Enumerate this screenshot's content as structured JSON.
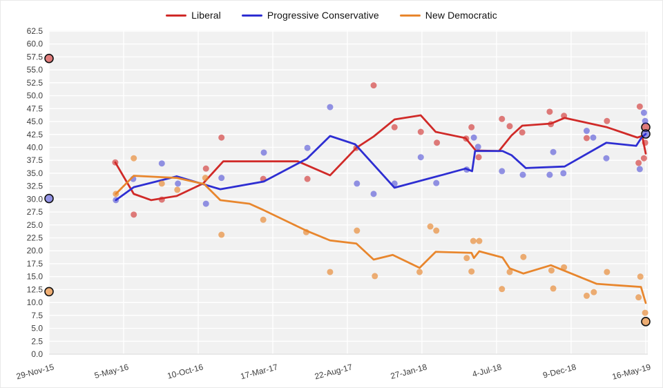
{
  "legend": {
    "items": [
      {
        "id": "liberal",
        "label": "Liberal",
        "color": "#d02a28"
      },
      {
        "id": "pc",
        "label": "Progressive Conservative",
        "color": "#2e2ed2"
      },
      {
        "id": "ndp",
        "label": "New Democratic",
        "color": "#e8862d"
      }
    ]
  },
  "chart_data": {
    "type": "line",
    "title": "",
    "legend_position": "top-center",
    "grid": true,
    "panel_color": "#f1f1f1",
    "gridline_color": "#ffffff",
    "axis_text_color": "#3d3d3d",
    "x_axis": {
      "tick_labels": [
        "29-Nov-15",
        "5-May-16",
        "10-Oct-16",
        "17-Mar-17",
        "22-Aug-17",
        "27-Jan-18",
        "4-Jul-18",
        "9-Dec-18",
        "16-May-19"
      ],
      "x_encoding": "fraction of time axis, 0 = 29-Nov-15 tick, 1 = 16-May-19 tick"
    },
    "y_axis": {
      "min": 0,
      "max": 62.5,
      "step": 2.5,
      "tick_format": "one_decimal"
    },
    "series": [
      {
        "name": "Liberal",
        "color": "#d02a28",
        "dot_opacity": 0.6,
        "start_marker": 57.2,
        "end_marker": 43.9,
        "trend": [
          [
            0.111,
            37.1
          ],
          [
            0.142,
            31.0
          ],
          [
            0.171,
            29.8
          ],
          [
            0.214,
            30.6
          ],
          [
            0.258,
            33.0
          ],
          [
            0.292,
            37.3
          ],
          [
            0.417,
            37.3
          ],
          [
            0.471,
            34.6
          ],
          [
            0.515,
            39.9
          ],
          [
            0.544,
            42.1
          ],
          [
            0.579,
            45.4
          ],
          [
            0.623,
            46.2
          ],
          [
            0.648,
            43.0
          ],
          [
            0.698,
            41.8
          ],
          [
            0.715,
            39.4
          ],
          [
            0.754,
            39.3
          ],
          [
            0.775,
            42.3
          ],
          [
            0.793,
            44.2
          ],
          [
            0.841,
            44.6
          ],
          [
            0.864,
            45.7
          ],
          [
            0.935,
            43.9
          ],
          [
            0.986,
            41.9
          ],
          [
            0.994,
            42.2
          ],
          [
            1.0,
            38.8
          ]
        ],
        "polls": [
          [
            0.111,
            37.1
          ],
          [
            0.142,
            27.0
          ],
          [
            0.189,
            29.9
          ],
          [
            0.263,
            35.9
          ],
          [
            0.289,
            41.9
          ],
          [
            0.359,
            33.9
          ],
          [
            0.433,
            33.9
          ],
          [
            0.515,
            39.9
          ],
          [
            0.544,
            52.0
          ],
          [
            0.579,
            43.9
          ],
          [
            0.623,
            43.0
          ],
          [
            0.65,
            40.9
          ],
          [
            0.699,
            41.7
          ],
          [
            0.708,
            43.9
          ],
          [
            0.72,
            38.1
          ],
          [
            0.759,
            45.5
          ],
          [
            0.772,
            44.1
          ],
          [
            0.793,
            42.9
          ],
          [
            0.839,
            46.9
          ],
          [
            0.841,
            44.5
          ],
          [
            0.863,
            46.1
          ],
          [
            0.901,
            41.8
          ],
          [
            0.935,
            45.1
          ],
          [
            0.988,
            37.0
          ],
          [
            0.99,
            47.9
          ],
          [
            0.997,
            37.9
          ],
          [
            0.999,
            40.9
          ]
        ]
      },
      {
        "name": "Progressive Conservative",
        "color": "#2e2ed2",
        "dot_opacity": 0.5,
        "start_marker": 30.1,
        "end_marker": 42.6,
        "trend": [
          [
            0.112,
            29.8
          ],
          [
            0.142,
            32.3
          ],
          [
            0.214,
            34.4
          ],
          [
            0.287,
            31.9
          ],
          [
            0.36,
            33.4
          ],
          [
            0.432,
            37.8
          ],
          [
            0.471,
            42.2
          ],
          [
            0.513,
            40.6
          ],
          [
            0.579,
            32.2
          ],
          [
            0.66,
            34.7
          ],
          [
            0.698,
            35.9
          ],
          [
            0.709,
            35.4
          ],
          [
            0.714,
            39.3
          ],
          [
            0.76,
            39.3
          ],
          [
            0.775,
            38.5
          ],
          [
            0.799,
            36.0
          ],
          [
            0.864,
            36.3
          ],
          [
            0.934,
            40.9
          ],
          [
            0.984,
            40.3
          ],
          [
            0.993,
            41.9
          ],
          [
            1.0,
            42.6
          ]
        ],
        "polls": [
          [
            0.112,
            29.8
          ],
          [
            0.141,
            33.9
          ],
          [
            0.189,
            36.9
          ],
          [
            0.216,
            33.0
          ],
          [
            0.263,
            29.1
          ],
          [
            0.289,
            34.1
          ],
          [
            0.36,
            39.0
          ],
          [
            0.433,
            39.9
          ],
          [
            0.471,
            47.8
          ],
          [
            0.516,
            33.0
          ],
          [
            0.544,
            31.0
          ],
          [
            0.579,
            33.0
          ],
          [
            0.623,
            38.1
          ],
          [
            0.649,
            33.1
          ],
          [
            0.7,
            35.7
          ],
          [
            0.712,
            41.9
          ],
          [
            0.719,
            40.1
          ],
          [
            0.759,
            35.4
          ],
          [
            0.794,
            34.7
          ],
          [
            0.839,
            34.7
          ],
          [
            0.845,
            39.1
          ],
          [
            0.862,
            35.0
          ],
          [
            0.901,
            43.2
          ],
          [
            0.912,
            41.9
          ],
          [
            0.934,
            37.9
          ],
          [
            0.99,
            35.8
          ],
          [
            0.997,
            46.7
          ],
          [
            0.999,
            45.1
          ]
        ]
      },
      {
        "name": "New Democratic",
        "color": "#e8862d",
        "dot_opacity": 0.65,
        "start_marker": 12.1,
        "end_marker": 6.3,
        "trend": [
          [
            0.112,
            31.0
          ],
          [
            0.142,
            34.5
          ],
          [
            0.214,
            34.1
          ],
          [
            0.26,
            32.9
          ],
          [
            0.287,
            29.8
          ],
          [
            0.336,
            29.1
          ],
          [
            0.359,
            27.9
          ],
          [
            0.431,
            23.9
          ],
          [
            0.471,
            22.0
          ],
          [
            0.515,
            21.4
          ],
          [
            0.544,
            18.3
          ],
          [
            0.576,
            19.2
          ],
          [
            0.621,
            16.7
          ],
          [
            0.648,
            19.8
          ],
          [
            0.708,
            19.6
          ],
          [
            0.712,
            18.6
          ],
          [
            0.721,
            19.9
          ],
          [
            0.76,
            18.7
          ],
          [
            0.772,
            16.6
          ],
          [
            0.795,
            15.6
          ],
          [
            0.841,
            17.2
          ],
          [
            0.918,
            13.6
          ],
          [
            0.992,
            13.0
          ],
          [
            1.0,
            9.9
          ]
        ],
        "polls": [
          [
            0.112,
            31.0
          ],
          [
            0.142,
            37.9
          ],
          [
            0.189,
            33.0
          ],
          [
            0.215,
            31.8
          ],
          [
            0.262,
            34.1
          ],
          [
            0.289,
            23.1
          ],
          [
            0.359,
            26.0
          ],
          [
            0.431,
            23.6
          ],
          [
            0.471,
            15.9
          ],
          [
            0.516,
            23.9
          ],
          [
            0.546,
            15.1
          ],
          [
            0.621,
            15.9
          ],
          [
            0.639,
            24.7
          ],
          [
            0.649,
            23.9
          ],
          [
            0.7,
            18.6
          ],
          [
            0.708,
            16.0
          ],
          [
            0.711,
            21.9
          ],
          [
            0.721,
            21.9
          ],
          [
            0.759,
            12.6
          ],
          [
            0.772,
            15.9
          ],
          [
            0.795,
            18.8
          ],
          [
            0.842,
            16.2
          ],
          [
            0.845,
            12.7
          ],
          [
            0.863,
            16.8
          ],
          [
            0.901,
            11.3
          ],
          [
            0.913,
            12.0
          ],
          [
            0.935,
            15.9
          ],
          [
            0.988,
            11.0
          ],
          [
            0.991,
            15.0
          ],
          [
            0.999,
            8.0
          ]
        ]
      }
    ]
  }
}
